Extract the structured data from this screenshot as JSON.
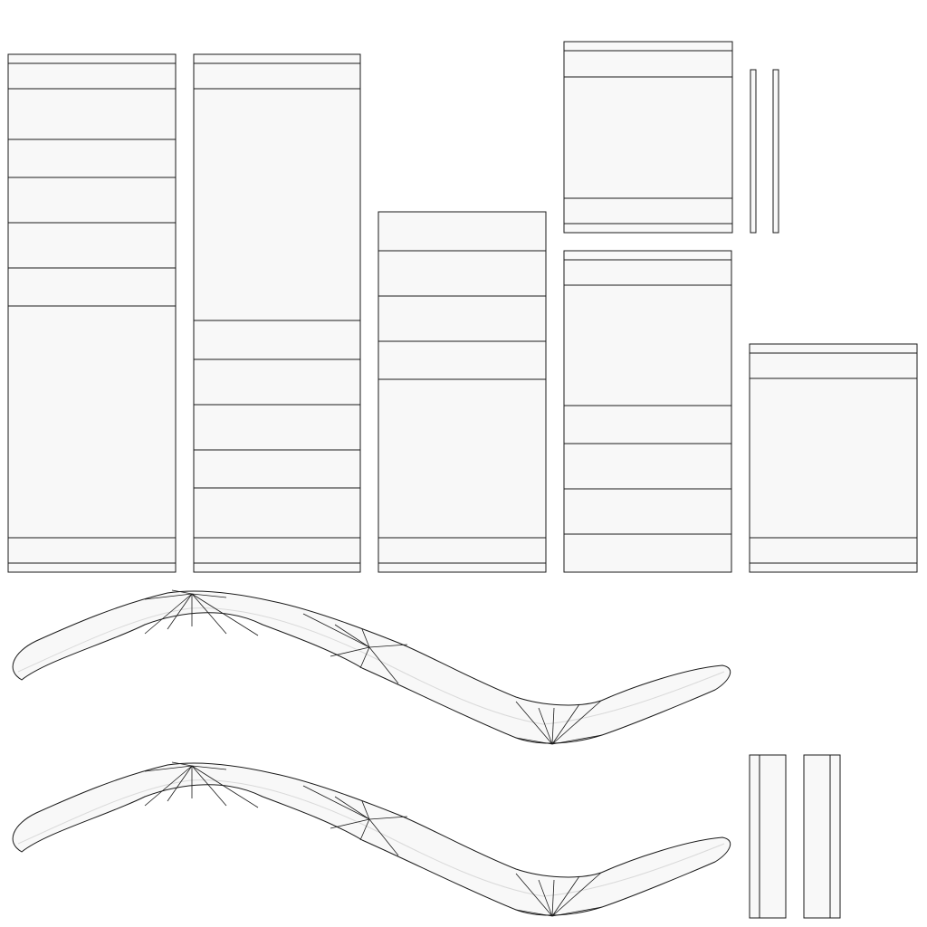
{
  "colors": {
    "background": "#ffffff",
    "island_fill": "#f8f8f8",
    "edge": "#1a1a1a",
    "centerline": "#d9d9d9"
  }
}
